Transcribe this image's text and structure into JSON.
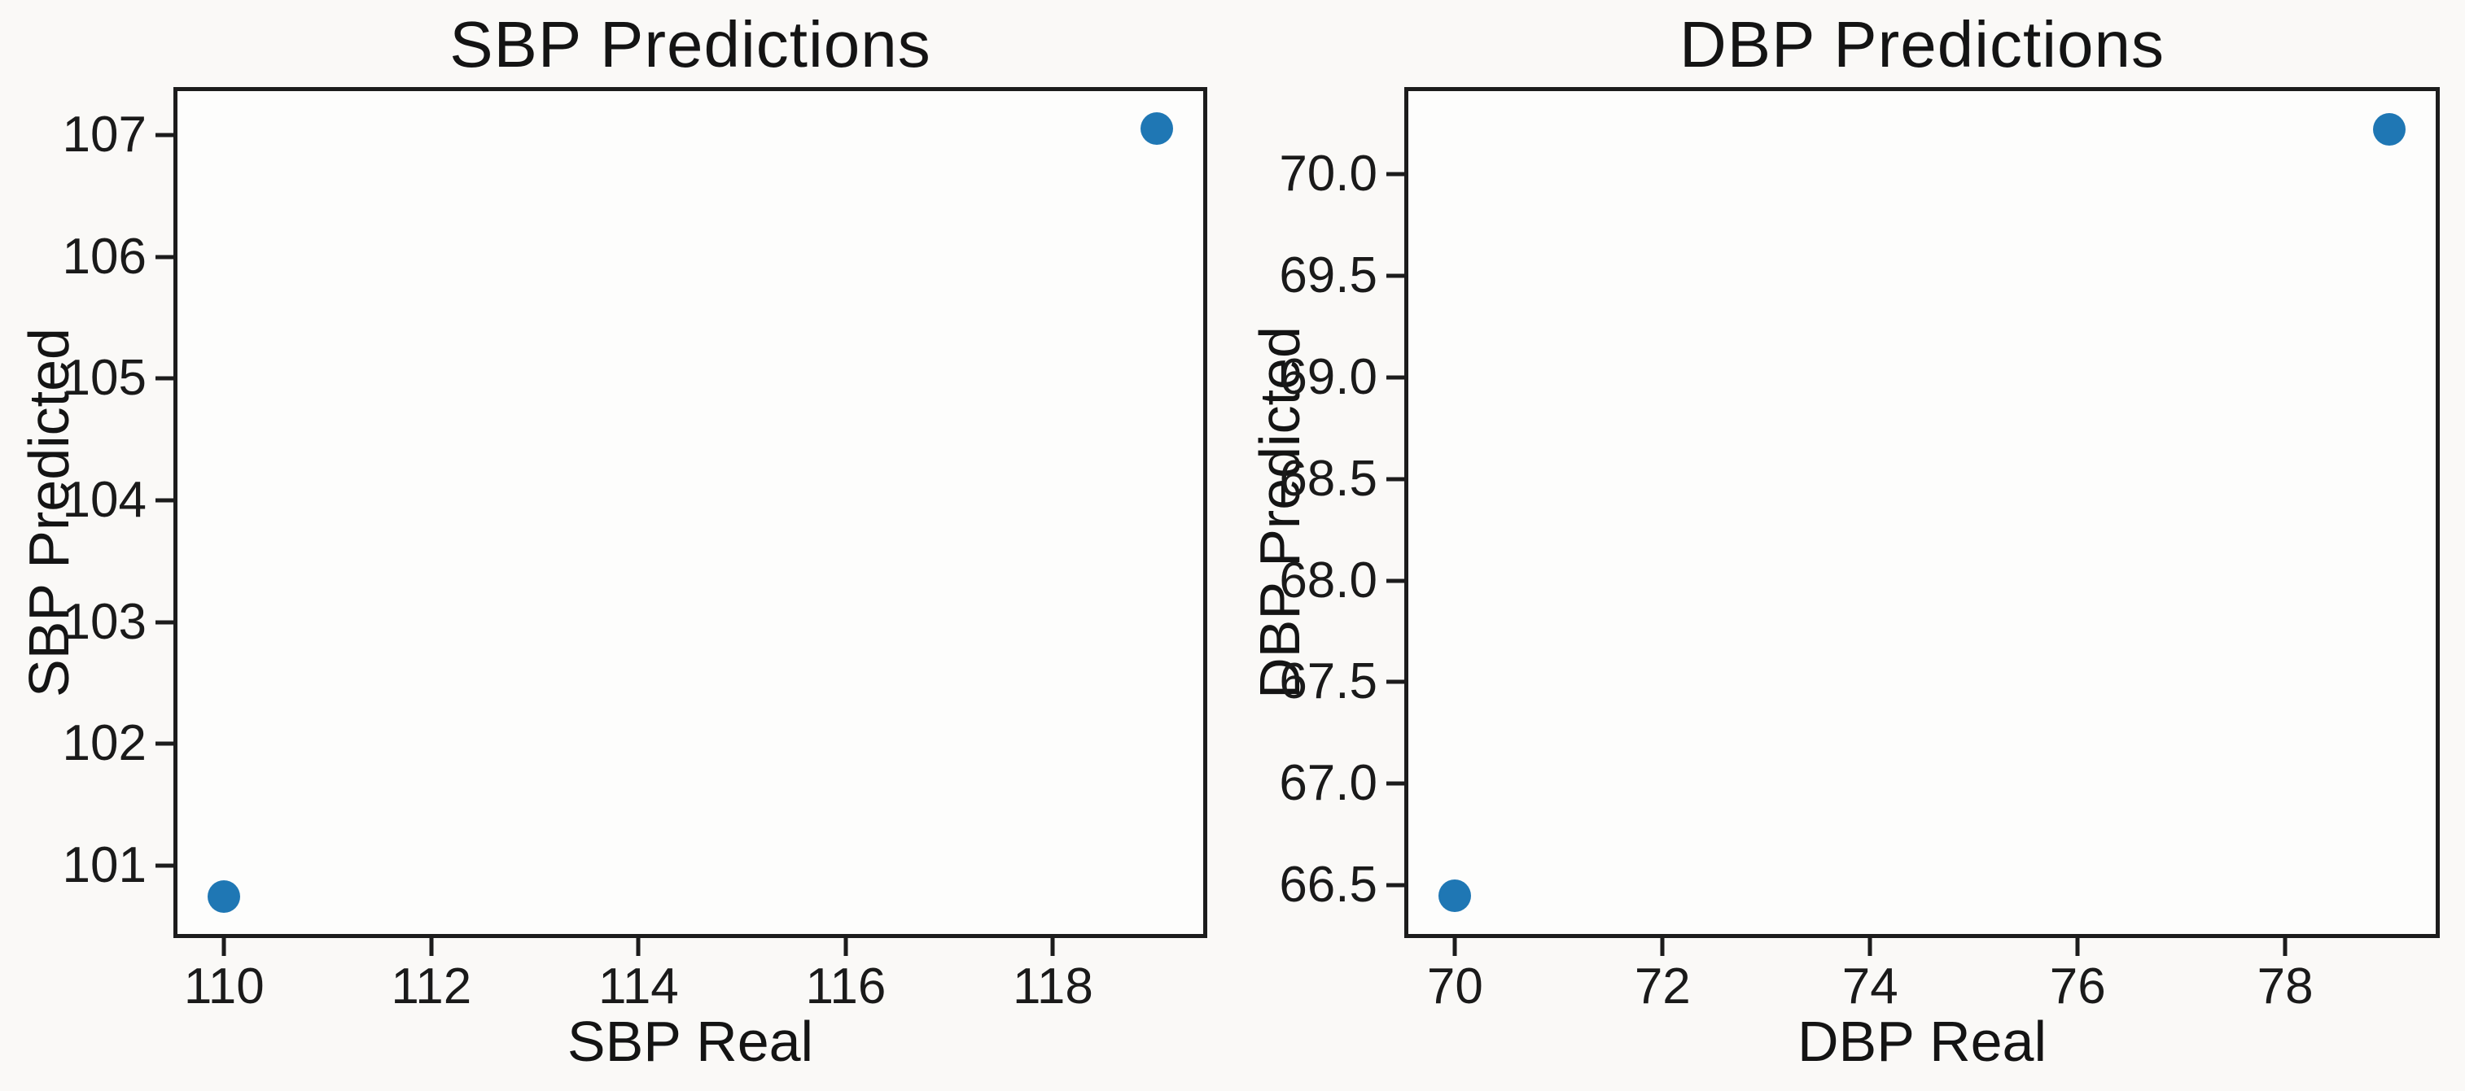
{
  "figure": {
    "background": "#faf9f7",
    "axis_color": "#1c1c1c",
    "text_color": "#141414"
  },
  "chart_data": [
    {
      "type": "scatter",
      "title": "SBP Predictions",
      "xlabel": "SBP Real",
      "ylabel": "SBP Predicted",
      "xlim": [
        109.55,
        119.45
      ],
      "ylim": [
        100.44,
        107.36
      ],
      "xticks": [
        110,
        112,
        114,
        116,
        118
      ],
      "xtick_labels": [
        "110",
        "112",
        "114",
        "116",
        "118"
      ],
      "yticks": [
        101,
        102,
        103,
        104,
        105,
        106,
        107
      ],
      "ytick_labels": [
        "101",
        "102",
        "103",
        "104",
        "105",
        "106",
        "107"
      ],
      "points": [
        {
          "x": 110,
          "y": 100.75
        },
        {
          "x": 119,
          "y": 107.05
        }
      ],
      "point_color": "#1f77b4",
      "axis_color": "#1c1c1c",
      "grid": false,
      "legend": null
    },
    {
      "type": "scatter",
      "title": "DBP Predictions",
      "xlabel": "DBP Real",
      "ylabel": "DBP Predicted",
      "xlim": [
        69.55,
        79.45
      ],
      "ylim": [
        66.26,
        70.41
      ],
      "xticks": [
        70,
        72,
        74,
        76,
        78
      ],
      "xtick_labels": [
        "70",
        "72",
        "74",
        "76",
        "78"
      ],
      "yticks": [
        66.5,
        67.0,
        67.5,
        68.0,
        68.5,
        69.0,
        69.5,
        70.0
      ],
      "ytick_labels": [
        "66.5",
        "67.0",
        "67.5",
        "68.0",
        "68.5",
        "69.0",
        "69.5",
        "70.0"
      ],
      "points": [
        {
          "x": 70,
          "y": 66.45
        },
        {
          "x": 79,
          "y": 70.22
        }
      ],
      "point_color": "#1f77b4",
      "axis_color": "#1c1c1c",
      "grid": false,
      "legend": null
    }
  ]
}
